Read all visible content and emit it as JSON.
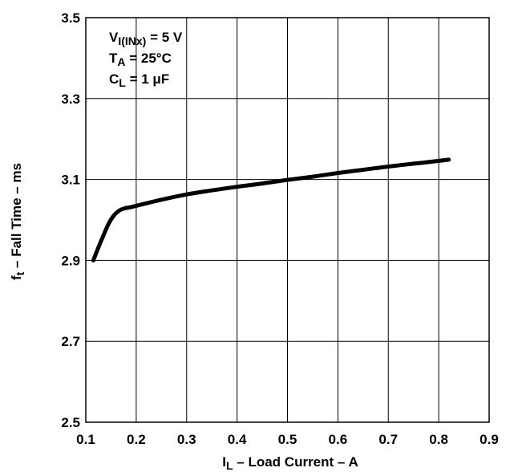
{
  "chart_data": {
    "type": "line",
    "title": "",
    "xlabel": {
      "main": "I",
      "sub": "L",
      "rest": " – Load Current – A"
    },
    "ylabel": {
      "main": "f",
      "sub": "t",
      "rest": " – Fall Time – ms"
    },
    "xlim": [
      0.1,
      0.9
    ],
    "ylim": [
      2.5,
      3.5
    ],
    "xticks": [
      "0.1",
      "0.2",
      "0.3",
      "0.4",
      "0.5",
      "0.6",
      "0.7",
      "0.8",
      "0.9"
    ],
    "yticks": [
      "2.5",
      "2.7",
      "2.9",
      "3.1",
      "3.3",
      "3.5"
    ],
    "grid": true,
    "annotations": [
      {
        "main": "V",
        "sub": "I(INx)",
        "rest": " = 5 V"
      },
      {
        "main": "T",
        "sub": "A",
        "rest": " = 25°C"
      },
      {
        "main": "C",
        "sub": "L",
        "rest": " = 1 μF"
      }
    ],
    "series": [
      {
        "x": [
          0.115,
          0.125,
          0.135,
          0.145,
          0.155,
          0.165,
          0.175,
          0.19,
          0.21,
          0.25,
          0.3,
          0.35,
          0.4,
          0.45,
          0.5,
          0.55,
          0.6,
          0.65,
          0.7,
          0.75,
          0.8,
          0.82
        ],
        "y": [
          2.9,
          2.932,
          2.962,
          2.99,
          3.01,
          3.022,
          3.028,
          3.032,
          3.038,
          3.05,
          3.063,
          3.073,
          3.082,
          3.09,
          3.099,
          3.107,
          3.116,
          3.124,
          3.132,
          3.139,
          3.146,
          3.149
        ]
      }
    ]
  }
}
